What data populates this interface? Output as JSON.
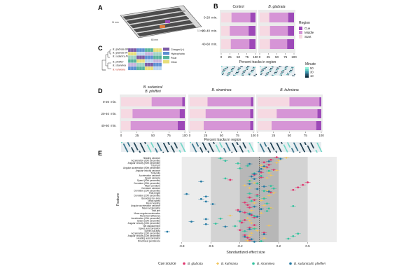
{
  "panel_letters": {
    "a": "A",
    "b": "B",
    "c": "C",
    "d": "D",
    "e": "E"
  },
  "apparatus": {
    "label_top": "7.5 mm",
    "label_left": "11 mm",
    "label_bottom": "65 mm",
    "label_right": "11 mm"
  },
  "cue_legend": {
    "rows": [
      "Charged (+)",
      "Hydrophobic",
      "Polar",
      "Other"
    ],
    "colors": [
      "#7b5aa6",
      "#5b8fd1",
      "#56b39b",
      "#e8df7a"
    ]
  },
  "tree_species": [
    "B. glabrata BB02",
    "B. glabrata M-line",
    "B. sudanica NMRI",
    "B. pfeifferi",
    "B. straminea",
    "B. kuhniana"
  ],
  "panelB": {
    "facets": [
      "Control",
      "B. glabrata"
    ],
    "time_bins": [
      "0-20",
      "20-40",
      "40-60"
    ],
    "time_unit": "min.",
    "x_ticks": [
      "0",
      "25",
      "50",
      "75",
      "100"
    ],
    "xlabel": "Percent tracks in region",
    "legend_title": "Region",
    "legend_items": [
      "Cue",
      "Middle",
      "Start"
    ],
    "region_colors": {
      "Cue": "#9d49b8",
      "Middle": "#d695d6",
      "Start": "#f6d9e2"
    },
    "minute_legend_title": "Minute",
    "minute_ticks": [
      "50",
      "30",
      "10"
    ]
  },
  "panelD": {
    "facets": [
      "B. sudanica/\nB. pfeifferi",
      "B. straminea",
      "B. kuhniana"
    ],
    "facet_line1": [
      "B. sudanica/",
      "B. straminea",
      "B. kuhniana"
    ],
    "facet_line2": [
      "B. pfeifferi",
      "",
      ""
    ],
    "time_bins": [
      "0-20",
      "20-40",
      "40-60"
    ],
    "time_unit": "min.",
    "x_ticks": [
      "0",
      "25",
      "50",
      "75",
      "100"
    ],
    "xlabel": "Percent tracks in region"
  },
  "chart_data": [
    {
      "type": "bar",
      "stacked": true,
      "orientation": "horizontal",
      "panel": "B",
      "categories": [
        "0-20 min.",
        "20-40 min.",
        "40-60 min."
      ],
      "facets": [
        "Control",
        "B. glabrata"
      ],
      "series_order": [
        "Start",
        "Middle",
        "Cue"
      ],
      "values": {
        "Control": {
          "Start": [
            30,
            25,
            28
          ],
          "Middle": [
            55,
            55,
            54
          ],
          "Cue": [
            15,
            20,
            18
          ]
        },
        "B. glabrata": {
          "Start": [
            28,
            30,
            30
          ],
          "Middle": [
            55,
            52,
            50
          ],
          "Cue": [
            17,
            18,
            20
          ]
        }
      },
      "xlim": [
        0,
        100
      ],
      "xlabel": "Percent tracks in region",
      "legend": "right"
    },
    {
      "type": "bar",
      "stacked": true,
      "orientation": "horizontal",
      "panel": "D",
      "categories": [
        "0-20 min.",
        "20-40 min.",
        "40-60 min."
      ],
      "facets": [
        "B. sudanica/B. pfeifferi",
        "B. straminea",
        "B. kuhniana"
      ],
      "series_order": [
        "Start",
        "Middle",
        "Cue"
      ],
      "values": {
        "B. sudanica/B. pfeifferi": {
          "Start": [
            48,
            18,
            15
          ],
          "Middle": [
            48,
            74,
            74
          ],
          "Cue": [
            4,
            8,
            11
          ]
        },
        "B. straminea": {
          "Start": [
            28,
            25,
            22
          ],
          "Middle": [
            68,
            70,
            73
          ],
          "Cue": [
            4,
            5,
            5
          ]
        },
        "B. kuhniana": {
          "Start": [
            50,
            30,
            22
          ],
          "Middle": [
            47,
            64,
            70
          ],
          "Cue": [
            3,
            6,
            8
          ]
        }
      },
      "xlim": [
        0,
        100
      ],
      "xlabel": "Percent tracks in region"
    },
    {
      "type": "scatter",
      "panel": "E",
      "xlabel": "Standardized effect size",
      "ylabel": "Feature",
      "xlim": [
        -1.0,
        0.72
      ],
      "x_ticks": [
        -0.8,
        -0.5,
        -0.2,
        0.2,
        0.5
      ],
      "x_tick_labels": [
        "-0.8",
        "-0.5",
        "-0.2",
        "0.2",
        "0.5"
      ],
      "bands": [
        [
          -0.8,
          0.8
        ],
        [
          -0.5,
          0.5
        ],
        [
          -0.2,
          0.2
        ]
      ],
      "band_colors": [
        "#ececec",
        "#d3d3d3",
        "#b7b7b7"
      ],
      "zero_line": true,
      "features": [
        "Heading variance",
        "Acceleration (90th percentile)",
        "Angular velocity (90th percentile)",
        "Total turn",
        "Angular acceleration (90th percentile)",
        "Angular velocity variance",
        "Tortuosity",
        "Acceleration variance",
        "Speed variance",
        "Speed (90th percentile)",
        "Curvature (90th percentile)",
        "Mean curvature",
        "Curvature variance",
        "Curvature (10th percentile)",
        "Path length",
        "Curvature (10th percentile)",
        "Bounding box area",
        "Mean speed",
        "Mean heading",
        "Angular acceleration variance",
        "Mean acceleration",
        "Total jerk",
        "Mean angular acceleration",
        "Movement efficiency",
        "Acceleration (10th percentile)",
        "Speed (10th percentile)",
        "Angular velocity (10th percentile)",
        "Net displacement",
        "Speed autocorrelation",
        "Screen hat area",
        "Acceleration (10th percentile)",
        "Angular velocity (10th percentile)",
        "Heading autocorrelation",
        "Directional persistence"
      ],
      "series_names": [
        "B. glabrata",
        "B. kuhniana",
        "B. straminea",
        "B. sudanica/B. pfeifferi"
      ],
      "series_colors": [
        "#e0356e",
        "#f2c55c",
        "#31c29e",
        "#2379a3"
      ],
      "series": [
        {
          "name": "B. glabrata",
          "values": [
            0.18,
            0.12,
            0.05,
            0.1,
            0.08,
            0.15,
            0.02,
            -0.05,
            0.02,
            -0.3,
            0.5,
            0.45,
            0.4,
            0.35,
            0.12,
            -0.02,
            -0.1,
            -0.05,
            -0.15,
            -0.12,
            -0.1,
            -0.22,
            -0.15,
            -0.08,
            -0.05,
            -0.15,
            -0.18,
            -0.05,
            -0.1,
            -0.2,
            0.05,
            -0.15,
            -0.12,
            -0.1
          ]
        },
        {
          "name": "B. kuhniana",
          "values": [
            0.28,
            0.2,
            0.18,
            0.02,
            0.05,
            0.18,
            0.1,
            0.12,
            0.08,
            -0.1,
            -0.05,
            -0.15,
            -0.1,
            0.08,
            0.15,
            0.1,
            0.05,
            0.02,
            -0.05,
            0.05,
            0.12,
            -0.08,
            0.02,
            -0.3,
            -0.12,
            -0.1,
            -0.08,
            0.1,
            -0.05,
            -0.02,
            -0.08,
            -0.1,
            0.05,
            -0.12
          ]
        },
        {
          "name": "B. straminea",
          "values": [
            -0.4,
            -0.35,
            -0.22,
            -0.12,
            -0.2,
            0.1,
            -0.05,
            0.02,
            -0.35,
            -0.1,
            -0.02,
            0.12,
            0.15,
            0.05,
            -0.1,
            -0.02,
            0.05,
            -0.08,
            0.08,
            0.35,
            0.1,
            0.08,
            -0.1,
            -0.05,
            -0.4,
            -0.2,
            -0.45,
            -0.25,
            -0.05,
            -0.15,
            0.4,
            0.35,
            0.3,
            0.02
          ]
        },
        {
          "name": "B. sudanica/B. pfeifferi",
          "values": [
            0.22,
            0.1,
            -0.1,
            0.05,
            0.02,
            0.0,
            -0.05,
            -0.08,
            -0.05,
            -0.6,
            -0.1,
            0.05,
            -0.02,
            0.1,
            -0.75,
            -0.55,
            -0.6,
            -0.55,
            -0.48,
            -0.05,
            0.02,
            -0.2,
            -0.1,
            -0.02,
            -0.55,
            -0.7,
            -0.55,
            -0.35,
            -0.1,
            -0.95,
            0.05,
            -0.15,
            -0.08,
            -0.05
          ]
        }
      ],
      "legend_title": "Cue source",
      "legend": "bottom"
    }
  ]
}
